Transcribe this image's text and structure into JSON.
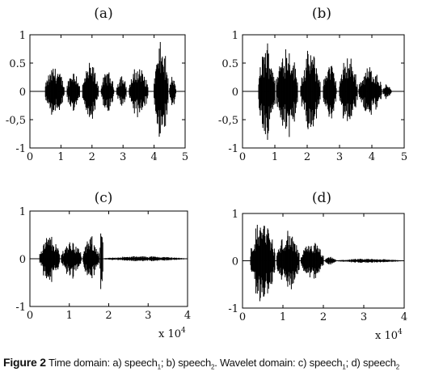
{
  "caption": {
    "label": "Figure 2",
    "parts": [
      {
        "text": " Time domain: a) speech"
      },
      {
        "sub": "1"
      },
      {
        "text": "; b) speech"
      },
      {
        "sub": "2"
      },
      {
        "text": ". Wavelet domain: c) speech"
      },
      {
        "sub": "1"
      },
      {
        "text": "; d) speech"
      },
      {
        "sub": "2"
      }
    ]
  },
  "chart_data": [
    {
      "type": "line",
      "title": "(a)",
      "xlim": [
        0,
        5
      ],
      "ylim": [
        -1,
        1
      ],
      "xticks": [
        0,
        1,
        2,
        3,
        4,
        5
      ],
      "xtick_labels": [
        "0",
        "1",
        "2",
        "3",
        "4",
        "5"
      ],
      "yticks": [
        1,
        0.5,
        0,
        -0.5,
        -1
      ],
      "ytick_labels": [
        "1",
        "0.5",
        "0",
        "-0,5",
        "-1"
      ],
      "x_multiplier": "",
      "series": [
        {
          "segments": [
            {
              "x": [
                0.5,
                1.1
              ],
              "amp": 0.5
            },
            {
              "x": [
                1.2,
                1.6
              ],
              "amp": 0.45
            },
            {
              "x": [
                1.7,
                2.2
              ],
              "amp": 0.55
            },
            {
              "x": [
                2.3,
                2.7
              ],
              "amp": 0.4
            },
            {
              "x": [
                2.8,
                3.1
              ],
              "amp": 0.35
            },
            {
              "x": [
                3.2,
                3.8
              ],
              "amp": 0.5
            },
            {
              "x": [
                4.0,
                4.45
              ],
              "amp": 0.95
            },
            {
              "x": [
                4.5,
                4.7
              ],
              "amp": 0.3
            }
          ]
        }
      ]
    },
    {
      "type": "line",
      "title": "(b)",
      "xlim": [
        0,
        5
      ],
      "ylim": [
        -1,
        1
      ],
      "xticks": [
        0,
        1,
        2,
        3,
        4,
        5
      ],
      "xtick_labels": [
        "0",
        "1",
        "2",
        "3",
        "4",
        "5"
      ],
      "yticks": [
        1,
        0.5,
        0,
        -0.5,
        -1
      ],
      "ytick_labels": [
        "1",
        "0.5",
        "0",
        "-0,5",
        "-1"
      ],
      "x_multiplier": "",
      "series": [
        {
          "segments": [
            {
              "x": [
                0.5,
                1.0
              ],
              "amp": 0.95
            },
            {
              "x": [
                1.05,
                1.7
              ],
              "amp": 0.95
            },
            {
              "x": [
                1.8,
                2.4
              ],
              "amp": 0.8
            },
            {
              "x": [
                2.5,
                2.9
              ],
              "amp": 0.6
            },
            {
              "x": [
                3.0,
                3.55
              ],
              "amp": 0.7
            },
            {
              "x": [
                3.6,
                4.3
              ],
              "amp": 0.5
            },
            {
              "x": [
                4.35,
                4.6
              ],
              "amp": 0.15
            }
          ]
        }
      ]
    },
    {
      "type": "line",
      "title": "(c)",
      "xlim": [
        0,
        4
      ],
      "ylim": [
        -1,
        1
      ],
      "xticks": [
        0,
        1,
        2,
        3,
        4
      ],
      "xtick_labels": [
        "0",
        "1",
        "2",
        "3",
        "4"
      ],
      "yticks": [
        1,
        0,
        -1
      ],
      "ytick_labels": [
        "1",
        "0",
        "-1"
      ],
      "x_multiplier": "x 10",
      "x_multiplier_exp": "4",
      "series": [
        {
          "segments": [
            {
              "x": [
                0.25,
                0.75
              ],
              "amp": 0.55
            },
            {
              "x": [
                0.8,
                1.3
              ],
              "amp": 0.45
            },
            {
              "x": [
                1.35,
                1.75
              ],
              "amp": 0.5
            },
            {
              "x": [
                1.78,
                1.85
              ],
              "amp": 0.95
            },
            {
              "x": [
                1.9,
                3.9
              ],
              "amp": 0.06
            }
          ]
        }
      ]
    },
    {
      "type": "line",
      "title": "(d)",
      "xlim": [
        0,
        4
      ],
      "ylim": [
        -1,
        1
      ],
      "xticks": [
        0,
        1,
        2,
        3,
        4
      ],
      "xtick_labels": [
        "0",
        "1",
        "2",
        "3",
        "4"
      ],
      "yticks": [
        1,
        0,
        -1
      ],
      "ytick_labels": [
        "1",
        "0",
        "-1"
      ],
      "x_multiplier": "x 10",
      "x_multiplier_exp": "4",
      "series": [
        {
          "segments": [
            {
              "x": [
                0.2,
                0.8
              ],
              "amp": 1.0
            },
            {
              "x": [
                0.85,
                1.4
              ],
              "amp": 0.7
            },
            {
              "x": [
                1.45,
                2.0
              ],
              "amp": 0.45
            },
            {
              "x": [
                2.05,
                2.3
              ],
              "amp": 0.1
            },
            {
              "x": [
                2.35,
                3.9
              ],
              "amp": 0.05
            }
          ]
        }
      ]
    }
  ]
}
